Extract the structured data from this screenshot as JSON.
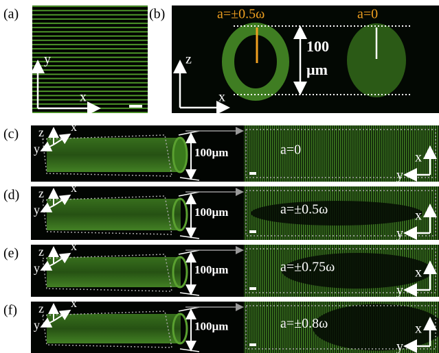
{
  "panels": [
    {
      "label": "(a)",
      "axes": [
        "y",
        "x"
      ]
    },
    {
      "label": "(b)",
      "axes": [
        "z",
        "x"
      ],
      "annotations": [
        "a=±0.5ω",
        "a=0"
      ],
      "scale": [
        "100",
        "µm"
      ]
    },
    {
      "label": "(c)",
      "left_axes": [
        "z",
        "y",
        "x"
      ],
      "scale": "100µm",
      "condition": "a=0",
      "right_axes": [
        "x",
        "y"
      ]
    },
    {
      "label": "(d)",
      "left_axes": [
        "z",
        "y",
        "x"
      ],
      "scale": "100µm",
      "condition": "a=±0.5ω",
      "right_axes": [
        "x",
        "y"
      ]
    },
    {
      "label": "(e)",
      "left_axes": [
        "z",
        "y",
        "x"
      ],
      "scale": "100µm",
      "condition": "a=±0.75ω",
      "right_axes": [
        "x",
        "y"
      ]
    },
    {
      "label": "(f)",
      "left_axes": [
        "z",
        "y",
        "x"
      ],
      "scale": "100µm",
      "condition": "a=±0.8ω",
      "right_axes": [
        "x",
        "y"
      ]
    }
  ]
}
